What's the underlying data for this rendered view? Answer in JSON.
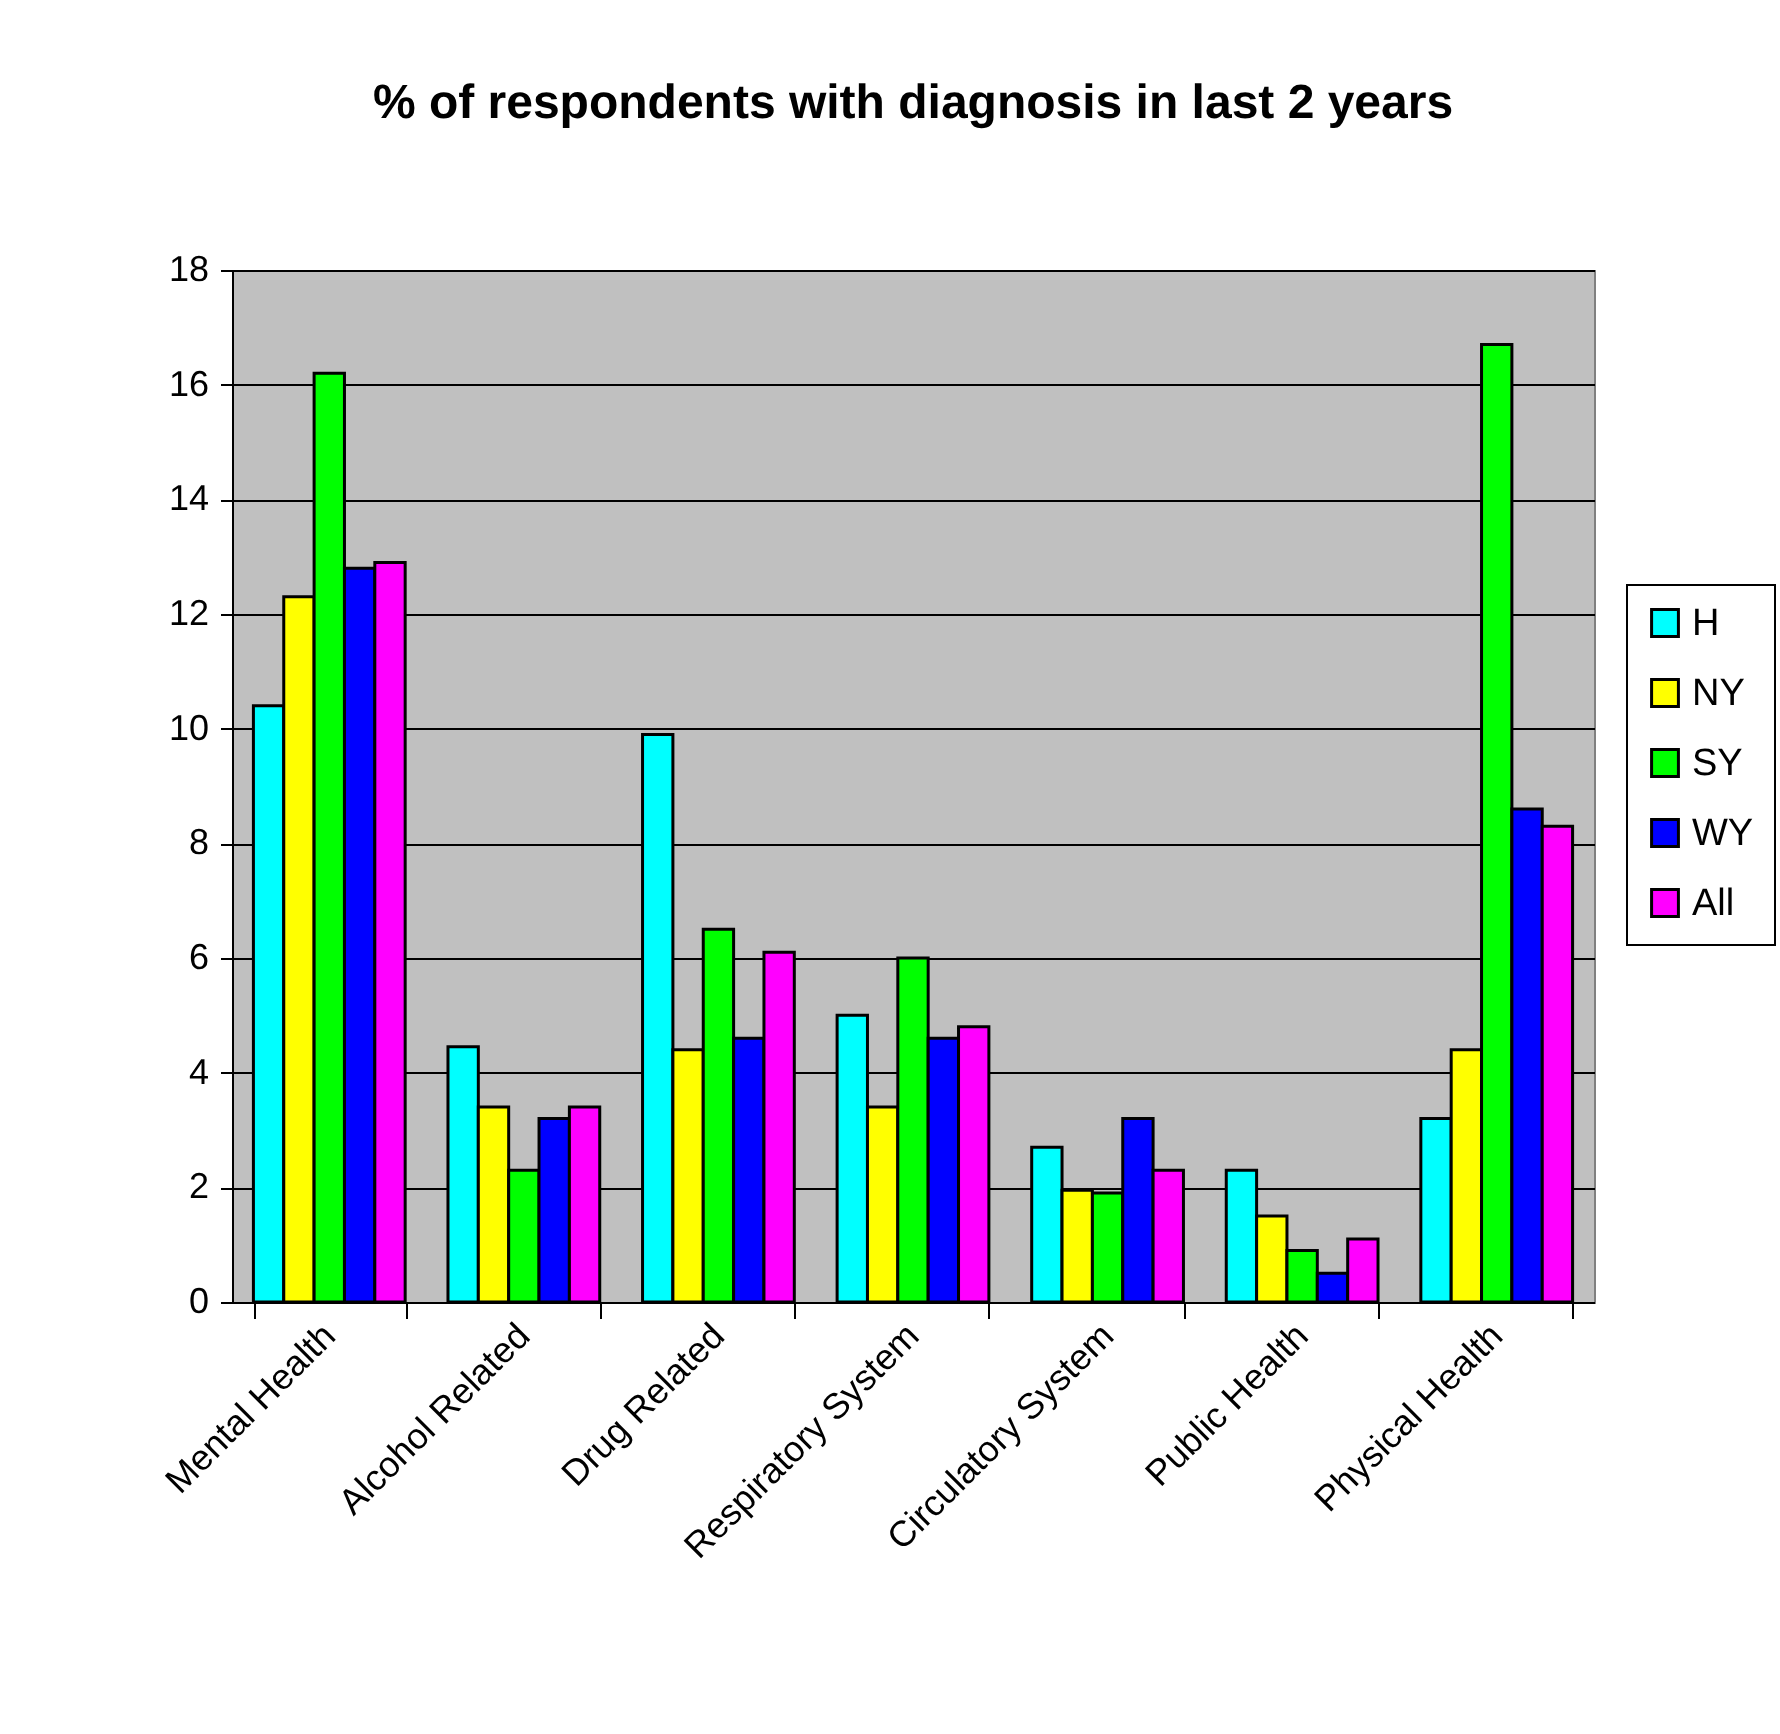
{
  "chart_data": {
    "type": "bar",
    "title": "% of respondents with diagnosis in last 2 years",
    "categories": [
      "Mental Health",
      "Alcohol Related",
      "Drug Related",
      "Respiratory System",
      "Circulatory System",
      "Public Health",
      "Physical Health"
    ],
    "series": [
      {
        "name": "H",
        "color": "#00ffff",
        "values": [
          10.4,
          4.45,
          9.9,
          5.0,
          2.7,
          2.3,
          3.2
        ]
      },
      {
        "name": "NY",
        "color": "#ffff00",
        "values": [
          12.3,
          3.4,
          4.4,
          3.4,
          1.95,
          1.5,
          4.4
        ]
      },
      {
        "name": "SY",
        "color": "#00ff00",
        "values": [
          16.2,
          2.3,
          6.5,
          6.0,
          1.9,
          0.9,
          16.7
        ]
      },
      {
        "name": "WY",
        "color": "#0000ff",
        "values": [
          12.8,
          3.2,
          4.6,
          4.6,
          3.2,
          0.5,
          8.6
        ]
      },
      {
        "name": "All",
        "color": "#ff00ff",
        "values": [
          12.9,
          3.4,
          6.1,
          4.8,
          2.3,
          1.1,
          8.3
        ]
      }
    ],
    "ylim": [
      0,
      18
    ],
    "yticks": [
      0,
      2,
      4,
      6,
      8,
      10,
      12,
      14,
      16,
      18
    ],
    "grid": "y",
    "legend": "right"
  }
}
